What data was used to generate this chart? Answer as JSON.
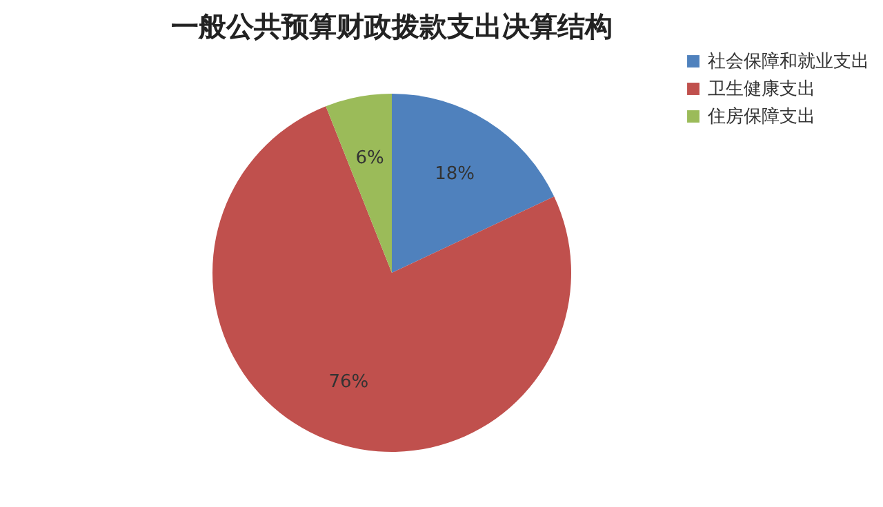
{
  "chart_data": {
    "type": "pie",
    "title": "一般公共预算财政拨款支出决算结构",
    "categories": [
      "社会保障和就业支出",
      "卫生健康支出",
      "住房保障支出"
    ],
    "values": [
      18,
      76,
      6
    ],
    "colors": [
      "#4f81bd",
      "#c0504d",
      "#9bbb59"
    ],
    "value_labels": [
      "18%",
      "76%",
      "6%"
    ],
    "legend": "right"
  }
}
